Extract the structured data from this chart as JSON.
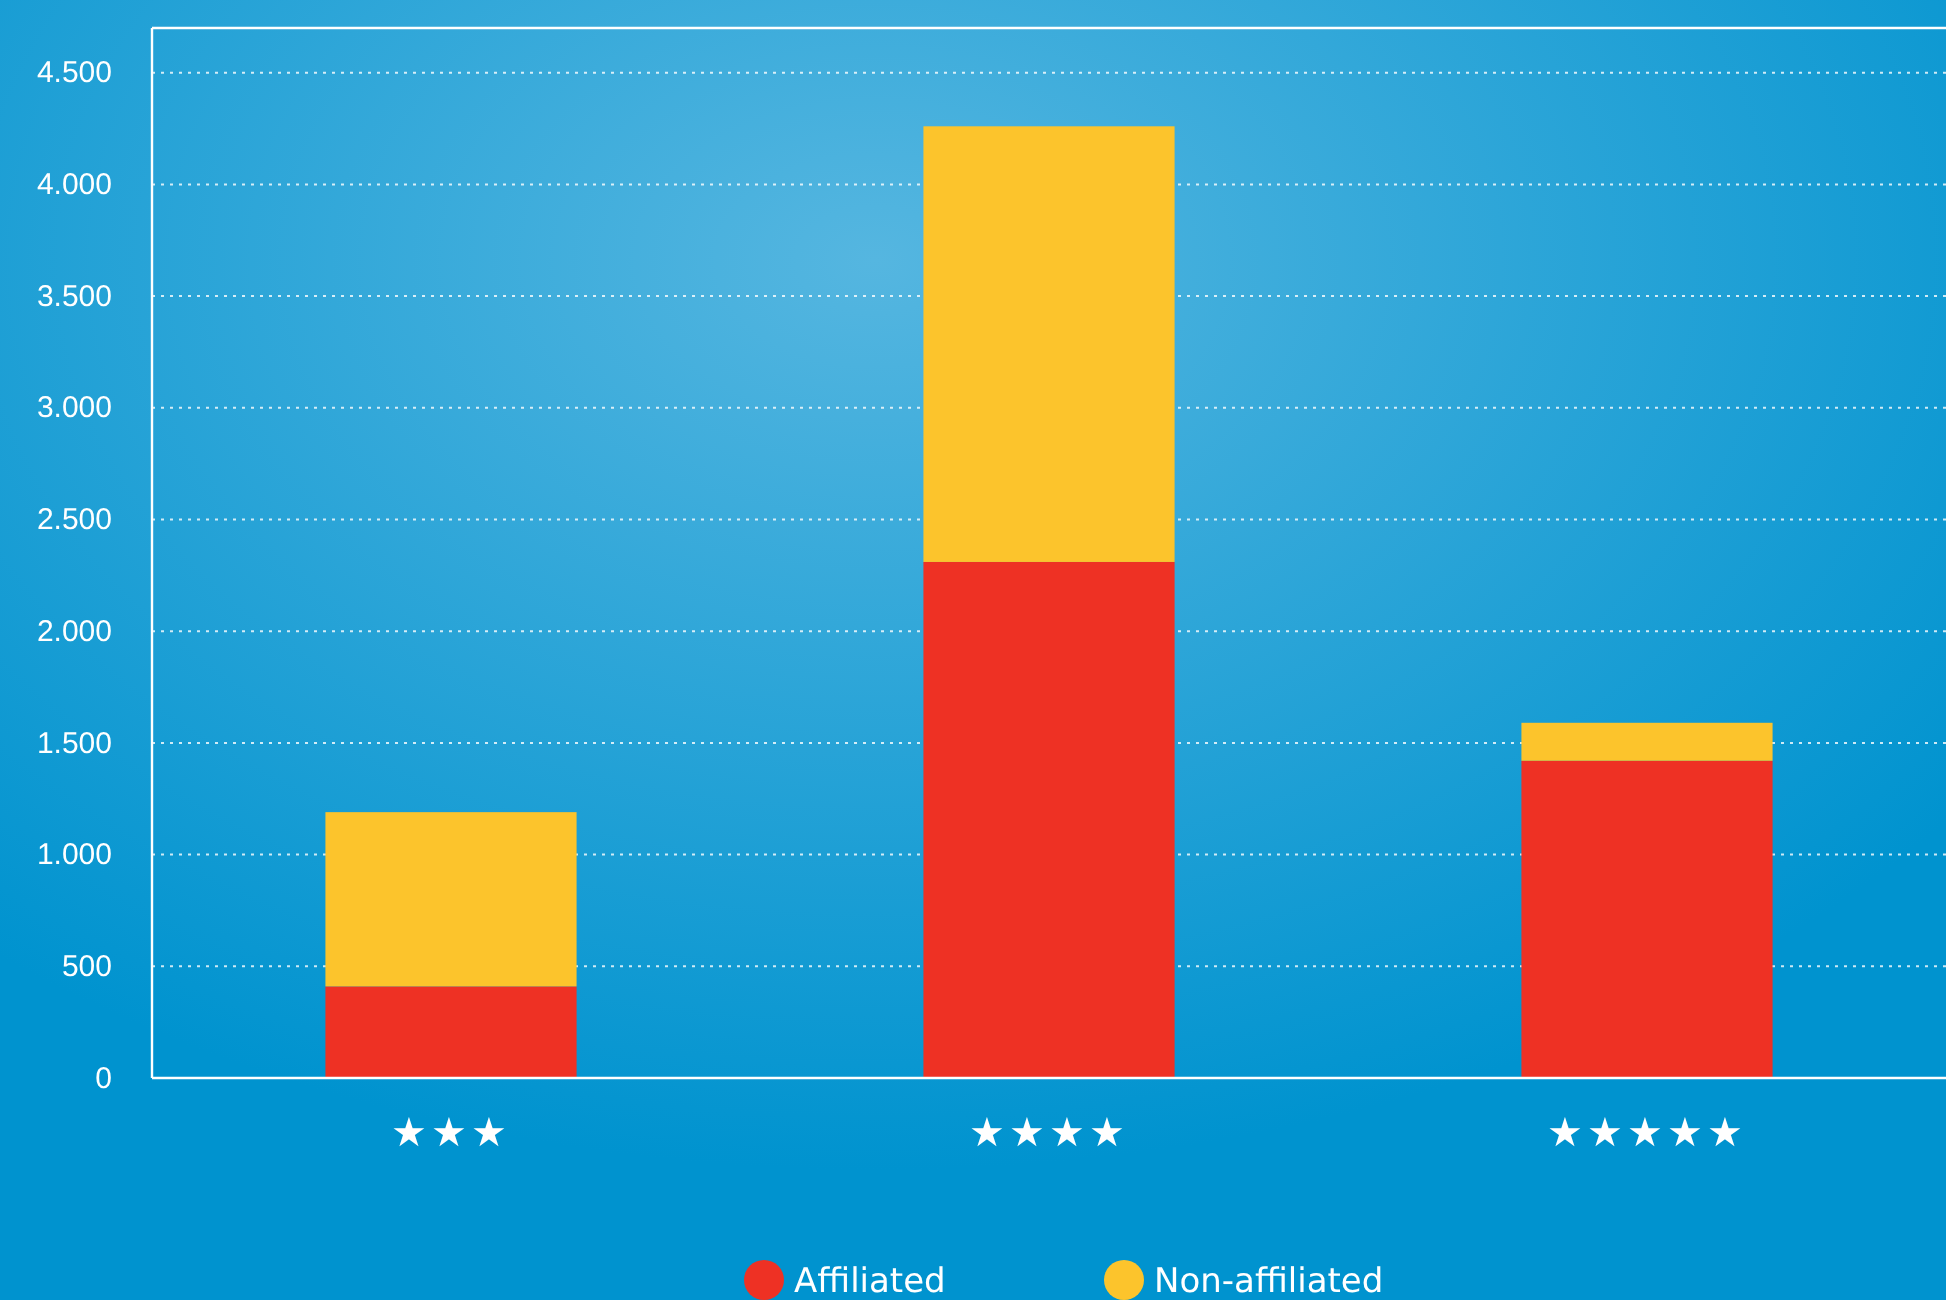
{
  "chart_data": {
    "type": "bar",
    "stacked": true,
    "categories": [
      "★★★",
      "★★★★",
      "★★★★★"
    ],
    "series": [
      {
        "name": "Affiliated",
        "color": "#ee3124",
        "values": [
          410,
          2310,
          1420
        ]
      },
      {
        "name": "Non-affiliated",
        "color": "#fcc42c",
        "values": [
          780,
          1950,
          170
        ]
      }
    ],
    "ylim": [
      0,
      4700
    ],
    "yticks": [
      {
        "value": 0,
        "label": "0"
      },
      {
        "value": 500,
        "label": "500"
      },
      {
        "value": 1000,
        "label": "1.000"
      },
      {
        "value": 1500,
        "label": "1.500"
      },
      {
        "value": 2000,
        "label": "2.000"
      },
      {
        "value": 2500,
        "label": "2.500"
      },
      {
        "value": 3000,
        "label": "3.000"
      },
      {
        "value": 3500,
        "label": "3.500"
      },
      {
        "value": 4000,
        "label": "4.000"
      },
      {
        "value": 4500,
        "label": "4.500"
      }
    ],
    "grid": "y",
    "legend": "bottom"
  }
}
